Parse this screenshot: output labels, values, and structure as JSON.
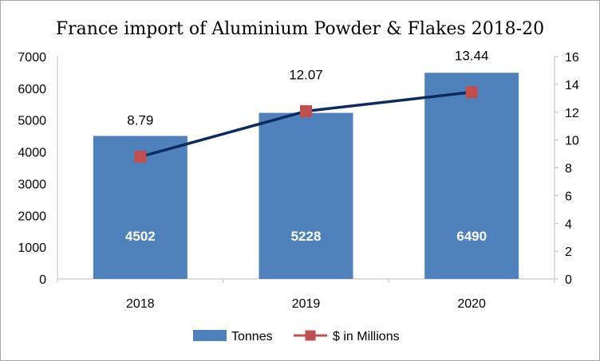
{
  "chart_data": {
    "type": "bar",
    "title": "France import of Aluminium Powder & Flakes 2018-20",
    "categories": [
      "2018",
      "2019",
      "2020"
    ],
    "series": [
      {
        "name": "Tonnes",
        "type": "bar",
        "axis": "left",
        "values": [
          4502,
          5228,
          6490
        ],
        "color": "#4f81bd"
      },
      {
        "name": "$ in Millions",
        "type": "line",
        "axis": "right",
        "values": [
          8.79,
          12.07,
          13.44
        ],
        "color": "#0d2a5e",
        "marker_color": "#c0504d"
      }
    ],
    "y_left": {
      "min": 0,
      "max": 7000,
      "ticks": [
        "0",
        "1000",
        "2000",
        "3000",
        "4000",
        "5000",
        "6000",
        "7000"
      ]
    },
    "y_right": {
      "min": 0,
      "max": 16,
      "ticks": [
        "0",
        "2",
        "4",
        "6",
        "8",
        "10",
        "12",
        "14",
        "16"
      ]
    },
    "legend": {
      "placement": "bottom",
      "entries": [
        "Tonnes",
        "$ in Millions"
      ]
    },
    "grid": false
  }
}
